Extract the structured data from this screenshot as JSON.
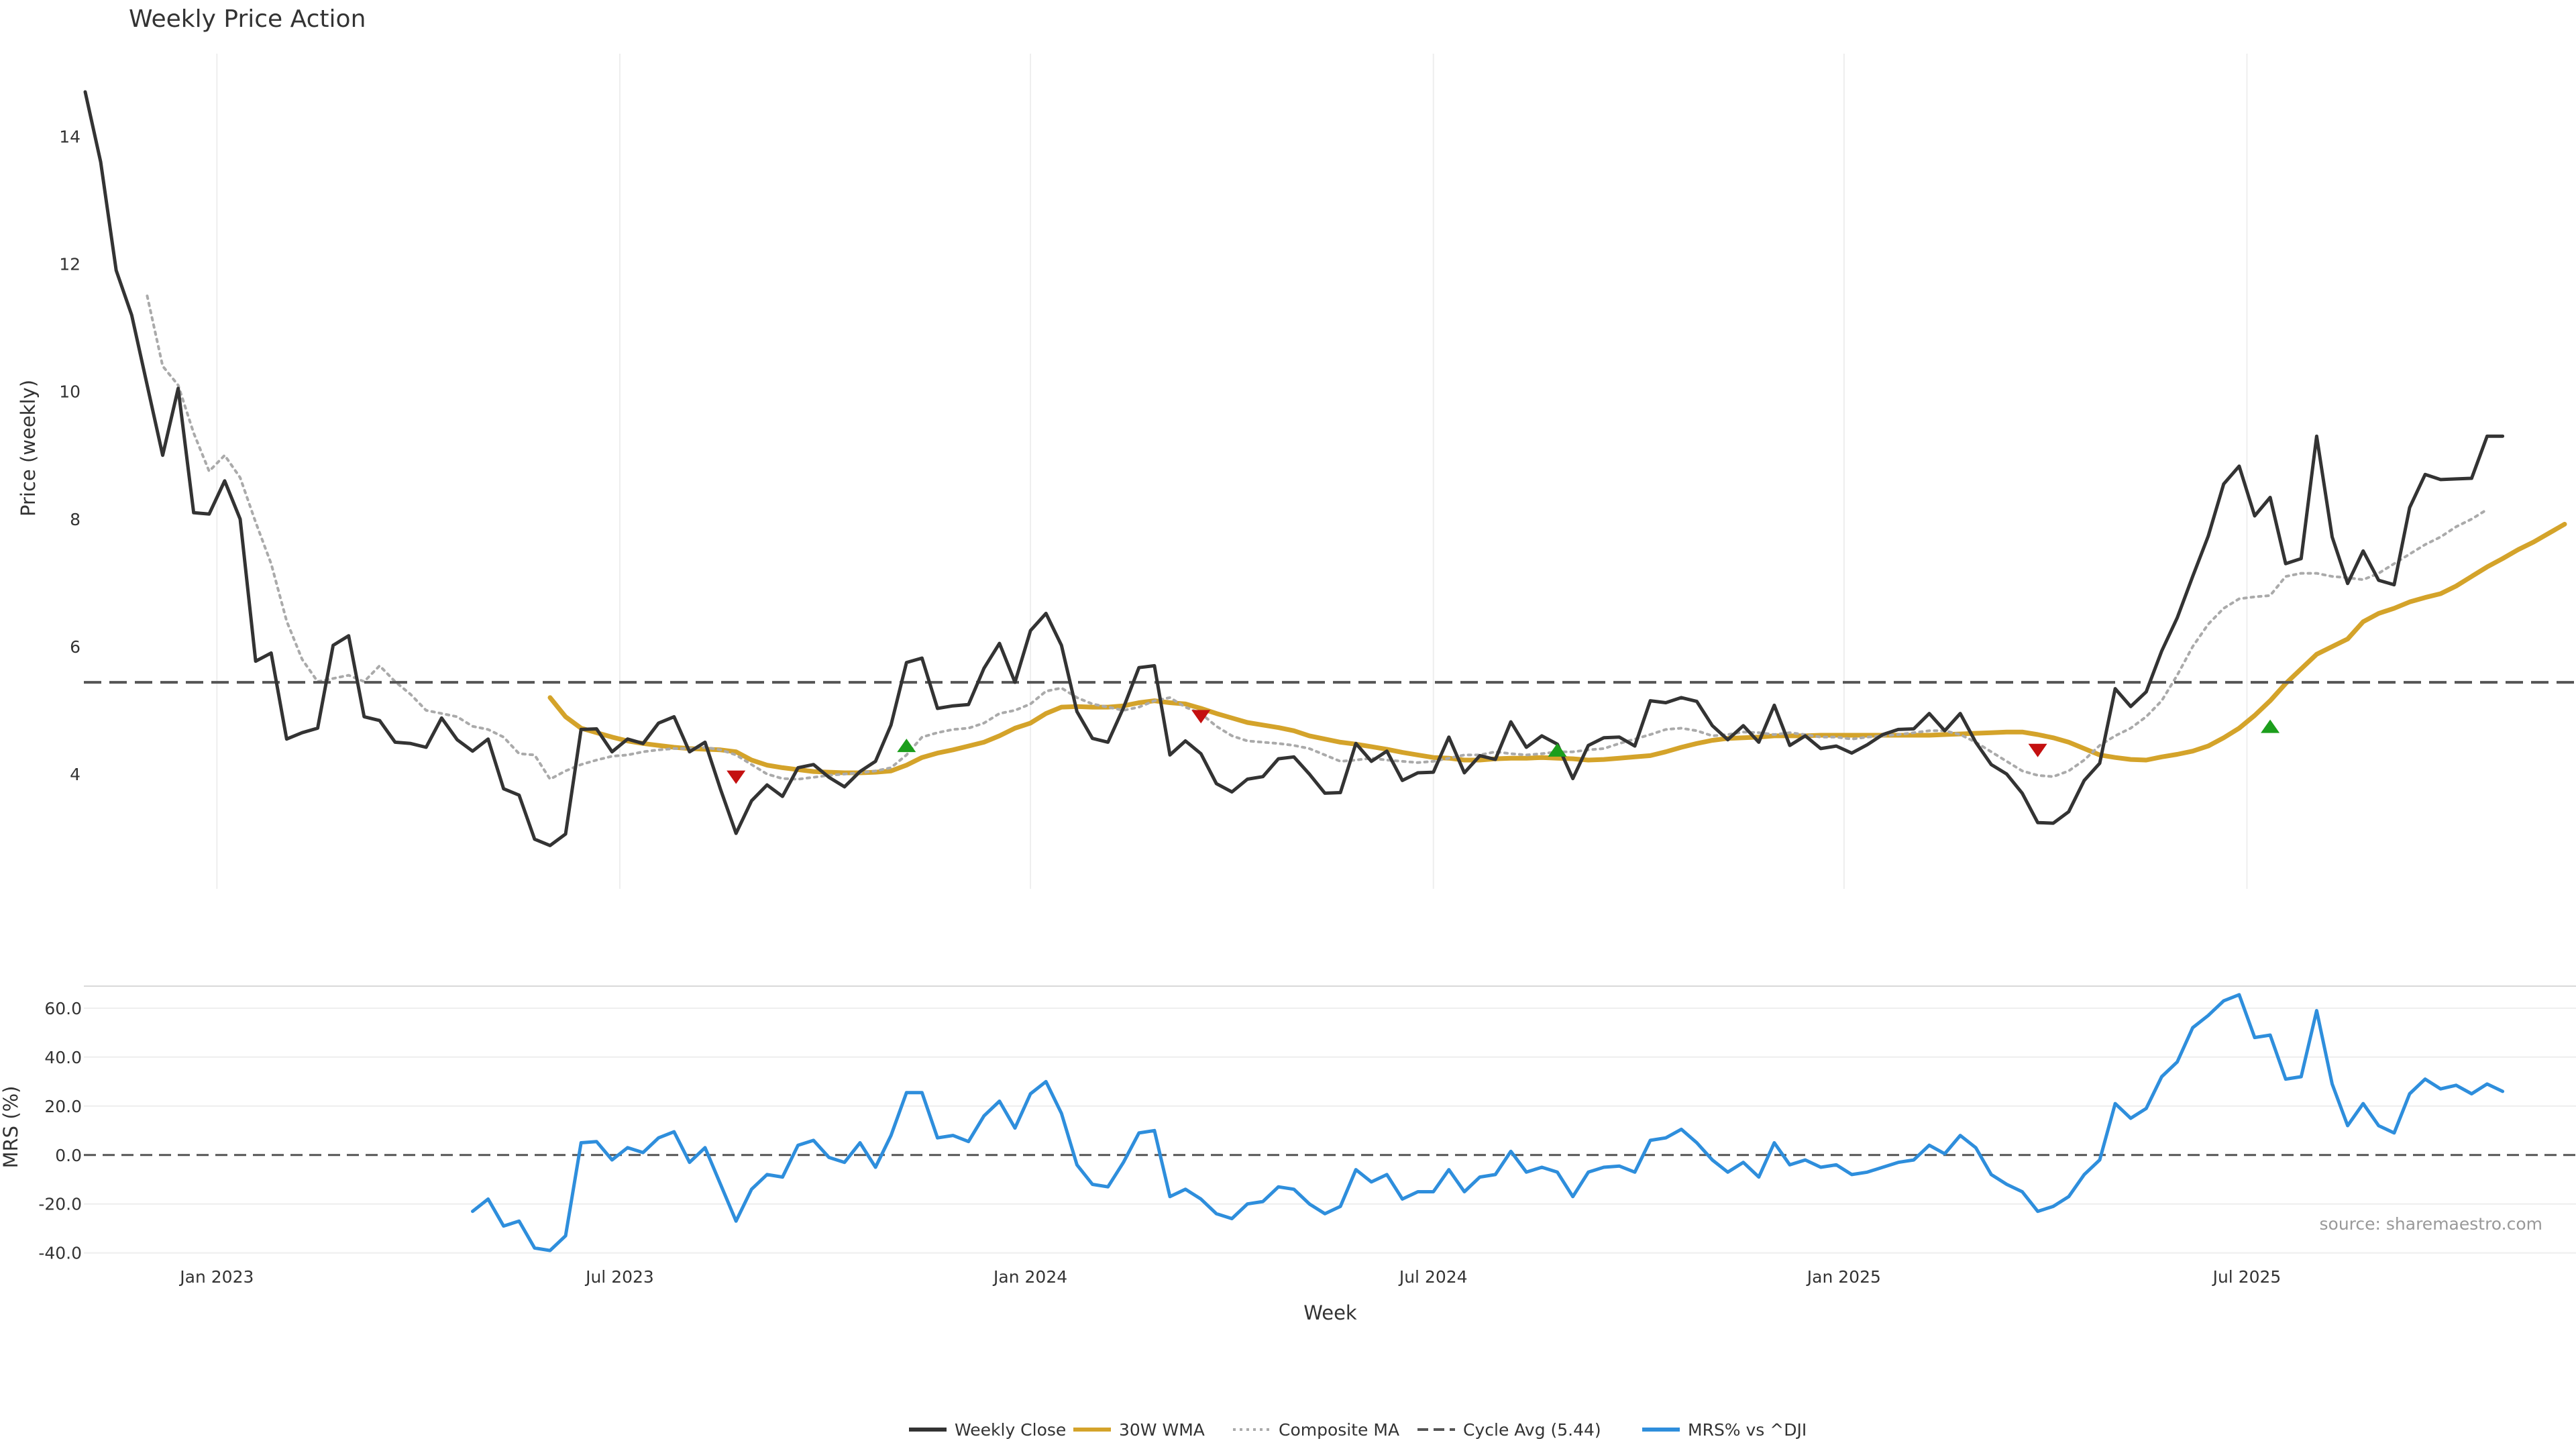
{
  "colors": {
    "close": "#333333",
    "wma": "#D4A32A",
    "composite": "#AAAAAA",
    "cycle": "#555555",
    "mrs": "#2E8EDC",
    "buy": "#1C9E1C",
    "sell": "#C41010",
    "grid": "#EEEEEE"
  },
  "chart_data": [
    {
      "type": "line",
      "title": "Weekly Price Action",
      "ylabel": "Price (weekly)",
      "xlabel": "",
      "ylim": [
        2.2,
        15.3
      ],
      "yticks": [
        "4",
        "6",
        "8",
        "10",
        "12",
        "14"
      ],
      "x_start_week": 0,
      "series": [
        {
          "name": "Weekly Close",
          "start": 0,
          "values": [
            14.7,
            13.6,
            11.9,
            11.2,
            10.1,
            9.0,
            10.05,
            8.1,
            8.08,
            8.6,
            8.0,
            5.77,
            5.9,
            4.55,
            4.65,
            4.72,
            6.02,
            6.17,
            4.9,
            4.84,
            4.5,
            4.48,
            4.42,
            4.88,
            4.54,
            4.36,
            4.55,
            3.77,
            3.67,
            2.98,
            2.88,
            3.06,
            4.7,
            4.71,
            4.35,
            4.55,
            4.48,
            4.8,
            4.9,
            4.35,
            4.5,
            3.76,
            3.07,
            3.58,
            3.83,
            3.65,
            4.1,
            4.15,
            3.95,
            3.8,
            4.04,
            4.2,
            4.77,
            5.75,
            5.82,
            5.03,
            5.07,
            5.09,
            5.66,
            6.05,
            5.44,
            6.25,
            6.52,
            6.02,
            4.98,
            4.56,
            4.5,
            5.04,
            5.67,
            5.7,
            4.3,
            4.52,
            4.32,
            3.85,
            3.72,
            3.92,
            3.96,
            4.24,
            4.27,
            4.0,
            3.7,
            3.71,
            4.48,
            4.2,
            4.36,
            3.9,
            4.02,
            4.03,
            4.58,
            4.02,
            4.29,
            4.23,
            4.82,
            4.42,
            4.6,
            4.47,
            3.93,
            4.45,
            4.57,
            4.58,
            4.44,
            5.15,
            5.12,
            5.2,
            5.14,
            4.76,
            4.54,
            4.76,
            4.5,
            5.08,
            4.45,
            4.6,
            4.4,
            4.44,
            4.33,
            4.46,
            4.62,
            4.7,
            4.71,
            4.95,
            4.68,
            4.95,
            4.5,
            4.15,
            4.0,
            3.7,
            3.24,
            3.23,
            3.41,
            3.9,
            4.17,
            5.34,
            5.06,
            5.29,
            5.93,
            6.45,
            7.1,
            7.73,
            8.55,
            8.83,
            8.05,
            8.34,
            7.3,
            7.38,
            9.3,
            7.72,
            6.99,
            7.5,
            7.04,
            6.97,
            8.18,
            8.7,
            8.62,
            8.63,
            8.64,
            9.3,
            9.3
          ]
        },
        {
          "name": "30W WMA",
          "start": 30,
          "values": [
            5.2,
            4.9,
            4.72,
            4.65,
            4.58,
            4.52,
            4.48,
            4.45,
            4.42,
            4.4,
            4.39,
            4.38,
            4.35,
            4.22,
            4.14,
            4.1,
            4.07,
            4.04,
            4.03,
            4.02,
            4.02,
            4.03,
            4.05,
            4.14,
            4.26,
            4.33,
            4.38,
            4.44,
            4.5,
            4.6,
            4.72,
            4.8,
            4.95,
            5.05,
            5.06,
            5.05,
            5.05,
            5.07,
            5.12,
            5.15,
            5.12,
            5.1,
            5.03,
            4.95,
            4.88,
            4.81,
            4.77,
            4.73,
            4.68,
            4.6,
            4.55,
            4.5,
            4.47,
            4.43,
            4.39,
            4.34,
            4.3,
            4.26,
            4.25,
            4.22,
            4.22,
            4.24,
            4.25,
            4.25,
            4.26,
            4.25,
            4.24,
            4.22,
            4.23,
            4.25,
            4.27,
            4.29,
            4.35,
            4.42,
            4.48,
            4.53,
            4.56,
            4.57,
            4.58,
            4.6,
            4.6,
            4.6,
            4.61,
            4.61,
            4.61,
            4.61,
            4.61,
            4.61,
            4.61,
            4.61,
            4.62,
            4.63,
            4.64,
            4.65,
            4.66,
            4.66,
            4.62,
            4.57,
            4.5,
            4.4,
            4.3,
            4.26,
            4.23,
            4.22,
            4.27,
            4.31,
            4.36,
            4.44,
            4.57,
            4.72,
            4.92,
            5.15,
            5.42,
            5.65,
            5.88,
            6.0,
            6.12,
            6.39,
            6.52,
            6.6,
            6.7,
            6.77,
            6.83,
            6.95,
            7.1,
            7.25,
            7.38,
            7.52,
            7.64,
            7.78,
            7.92
          ]
        },
        {
          "name": "Composite MA",
          "start": 4,
          "values": [
            11.5,
            10.4,
            10.1,
            9.35,
            8.75,
            9.0,
            8.65,
            7.95,
            7.3,
            6.4,
            5.8,
            5.45,
            5.5,
            5.55,
            5.45,
            5.7,
            5.45,
            5.25,
            5.0,
            4.95,
            4.9,
            4.75,
            4.7,
            4.58,
            4.32,
            4.3,
            3.92,
            4.05,
            4.15,
            4.22,
            4.28,
            4.3,
            4.35,
            4.38,
            4.4,
            4.4,
            4.42,
            4.38,
            4.3,
            4.15,
            4.0,
            3.93,
            3.92,
            3.95,
            3.98,
            4.0,
            4.02,
            4.05,
            4.1,
            4.3,
            4.58,
            4.65,
            4.7,
            4.72,
            4.8,
            4.95,
            5.0,
            5.1,
            5.3,
            5.35,
            5.2,
            5.1,
            5.05,
            5.0,
            5.05,
            5.15,
            5.2,
            5.05,
            4.95,
            4.75,
            4.6,
            4.52,
            4.5,
            4.48,
            4.45,
            4.4,
            4.3,
            4.2,
            4.22,
            4.25,
            4.22,
            4.2,
            4.18,
            4.2,
            4.25,
            4.3,
            4.3,
            4.35,
            4.32,
            4.3,
            4.32,
            4.35,
            4.35,
            4.38,
            4.4,
            4.48,
            4.55,
            4.62,
            4.7,
            4.72,
            4.68,
            4.6,
            4.62,
            4.66,
            4.65,
            4.62,
            4.65,
            4.62,
            4.58,
            4.58,
            4.55,
            4.58,
            4.6,
            4.62,
            4.65,
            4.68,
            4.68,
            4.62,
            4.5,
            4.35,
            4.2,
            4.05,
            3.98,
            3.96,
            4.05,
            4.22,
            4.45,
            4.6,
            4.72,
            4.9,
            5.15,
            5.55,
            6.0,
            6.35,
            6.6,
            6.75,
            6.78,
            6.8,
            7.1,
            7.15,
            7.15,
            7.1,
            7.08,
            7.05,
            7.15,
            7.3,
            7.45,
            7.6,
            7.72,
            7.88,
            8.0,
            8.15
          ]
        },
        {
          "name": "Cycle Avg (5.44)",
          "value": 5.44
        }
      ],
      "signals": [
        {
          "type": "sell",
          "week": 42,
          "price": 3.95
        },
        {
          "type": "buy",
          "week": 53,
          "price": 4.45
        },
        {
          "type": "sell",
          "week": 72,
          "price": 4.9
        },
        {
          "type": "buy",
          "week": 95,
          "price": 4.38
        },
        {
          "type": "sell",
          "week": 126,
          "price": 4.37
        },
        {
          "type": "buy",
          "week": 141,
          "price": 4.75
        }
      ]
    },
    {
      "type": "line",
      "title": "",
      "ylabel": "MRS (%)",
      "xlabel": "Week",
      "ylim": [
        -42,
        69
      ],
      "yticks": [
        "-40.0",
        "-20.0",
        "0.0",
        "20.0",
        "40.0",
        "60.0"
      ],
      "x_ticks": [
        {
          "label": "Jan 2023",
          "week": 8.5
        },
        {
          "label": "Jul 2023",
          "week": 34.5
        },
        {
          "label": "Jan 2024",
          "week": 61
        },
        {
          "label": "Jul 2024",
          "week": 87
        },
        {
          "label": "Jan 2025",
          "week": 113.5
        },
        {
          "label": "Jul 2025",
          "week": 139.5
        }
      ],
      "series": [
        {
          "name": "MRS% vs ^DJI",
          "start": 25,
          "values": [
            -23,
            -18,
            -29,
            -27,
            -38,
            -39,
            -33,
            5,
            5.5,
            -2,
            3,
            1,
            7,
            9.5,
            -3,
            3,
            -12,
            -27,
            -14,
            -8,
            -9,
            4,
            6,
            -1,
            -3,
            5,
            -5,
            8,
            25.5,
            25.5,
            7,
            8,
            5.5,
            16,
            22,
            11,
            25,
            30,
            17,
            -4,
            -12,
            -13,
            -3,
            9,
            10,
            -17,
            -14,
            -18,
            -24,
            -26,
            -20,
            -19,
            -13,
            -14,
            -20,
            -24,
            -21,
            -6,
            -11,
            -8,
            -18,
            -15,
            -15,
            -6,
            -15,
            -9,
            -8,
            1.5,
            -7,
            -5,
            -7,
            -17,
            -7,
            -5,
            -4.5,
            -7,
            6,
            7,
            10.5,
            5,
            -2,
            -7,
            -3,
            -9,
            5,
            -4,
            -2,
            -5,
            -4,
            -8,
            -7,
            -5,
            -3,
            -2,
            4,
            0.5,
            8,
            3,
            -8,
            -12,
            -15,
            -23,
            -21,
            -17,
            -8,
            -2,
            21,
            15,
            19,
            32,
            38,
            52,
            57,
            63,
            65.5,
            48,
            49,
            31,
            32,
            59,
            29,
            12,
            21,
            12,
            9,
            25,
            31,
            27,
            28.5,
            25,
            29,
            26
          ]
        }
      ],
      "source": "source: sharemaestro.com"
    }
  ],
  "legend": [
    {
      "label": "Weekly Close",
      "style": "solid",
      "color": "#333333"
    },
    {
      "label": "30W WMA",
      "style": "solid",
      "color": "#D4A32A"
    },
    {
      "label": "Composite MA",
      "style": "dotted",
      "color": "#AAAAAA"
    },
    {
      "label": "Cycle Avg (5.44)",
      "style": "dashed",
      "color": "#555555"
    },
    {
      "label": "MRS% vs ^DJI",
      "style": "solid",
      "color": "#2E8EDC"
    }
  ]
}
